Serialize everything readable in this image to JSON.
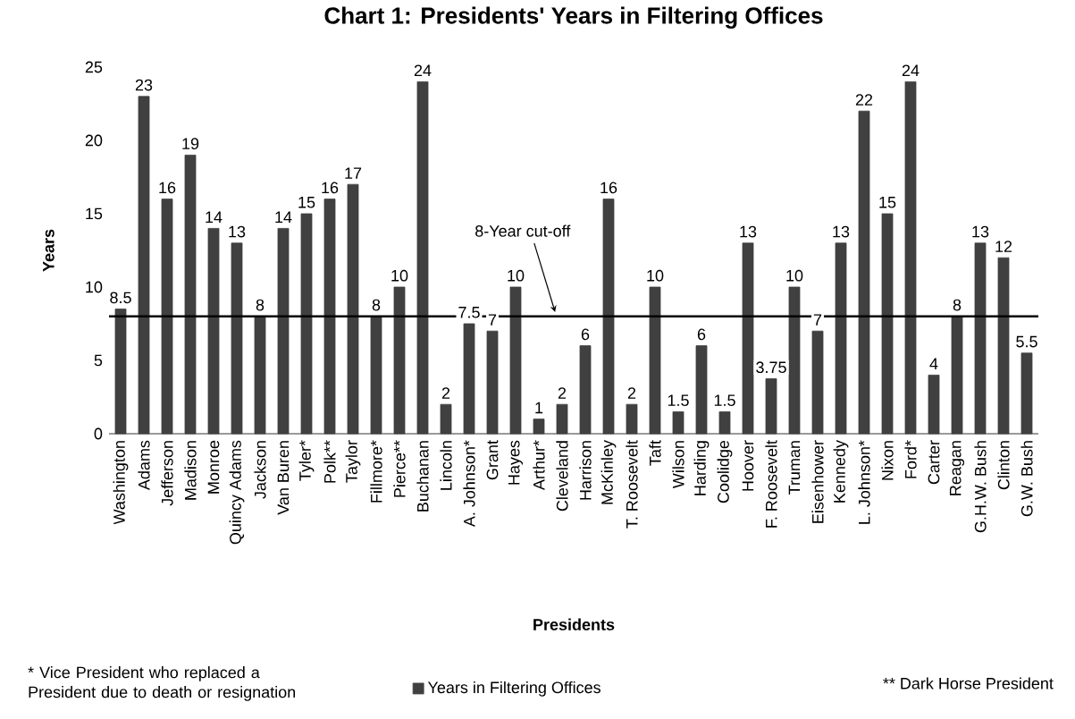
{
  "chart_data": {
    "type": "bar",
    "title": "Chart 1: Presidents' Years in Filtering Offices",
    "xlabel": "Presidents",
    "ylabel": "Years",
    "categories": [
      "Washington",
      "Adams",
      "Jefferson",
      "Madison",
      "Monroe",
      "Quincy Adams",
      "Jackson",
      "Van Buren",
      "Tyler*",
      "Polk**",
      "Taylor",
      "Fillmore*",
      "Pierce**",
      "Buchanan",
      "Lincoln",
      "A. Johnson*",
      "Grant",
      "Hayes",
      "Arthur*",
      "Cleveland",
      "Harrison",
      "McKinley",
      "T. Roosevelt",
      "Taft",
      "Wilson",
      "Harding",
      "Coolidge",
      "Hoover",
      "F. Roosevelt",
      "Truman",
      "Eisenhower",
      "Kennedy",
      "L. Johnson*",
      "Nixon",
      "Ford*",
      "Carter",
      "Reagan",
      "G.H.W. Bush",
      "Clinton",
      "G.W. Bush"
    ],
    "series": [
      {
        "name": "Years in Filtering Offices",
        "color": "#404040",
        "values": [
          8.5,
          23,
          16,
          19,
          14,
          13,
          8,
          14,
          15,
          16,
          17,
          8,
          10,
          24,
          2,
          7.5,
          7,
          10,
          1,
          2,
          6,
          16,
          2,
          10,
          1.5,
          6,
          1.5,
          13,
          3.75,
          10,
          7,
          13,
          22,
          15,
          24,
          4,
          8,
          13,
          12,
          5.5
        ],
        "value_labels": [
          "8.5",
          "23",
          "16",
          "19",
          "14",
          "13",
          "8",
          "14",
          "15",
          "16",
          "17",
          "8",
          "10",
          "24",
          "2",
          "7.5",
          "7",
          "10",
          "1",
          "2",
          "6",
          "16",
          "2",
          "10",
          "1.5",
          "6",
          "1.5",
          "13",
          "3.75",
          "10",
          "7",
          "13",
          "22",
          "15",
          "24",
          "4",
          "8",
          "13",
          "12",
          "5.5"
        ]
      }
    ],
    "ylim": [
      0,
      25
    ],
    "yticks": [
      0,
      5,
      10,
      15,
      20,
      25
    ],
    "legend": "bottom",
    "ref_lines": [
      {
        "axis": "y",
        "value": 8,
        "label": "8-Year cut-off",
        "color": "#000000"
      }
    ],
    "annotations": [
      "* Vice President who replaced a President due to death or resignation",
      "** Dark Horse President"
    ]
  }
}
